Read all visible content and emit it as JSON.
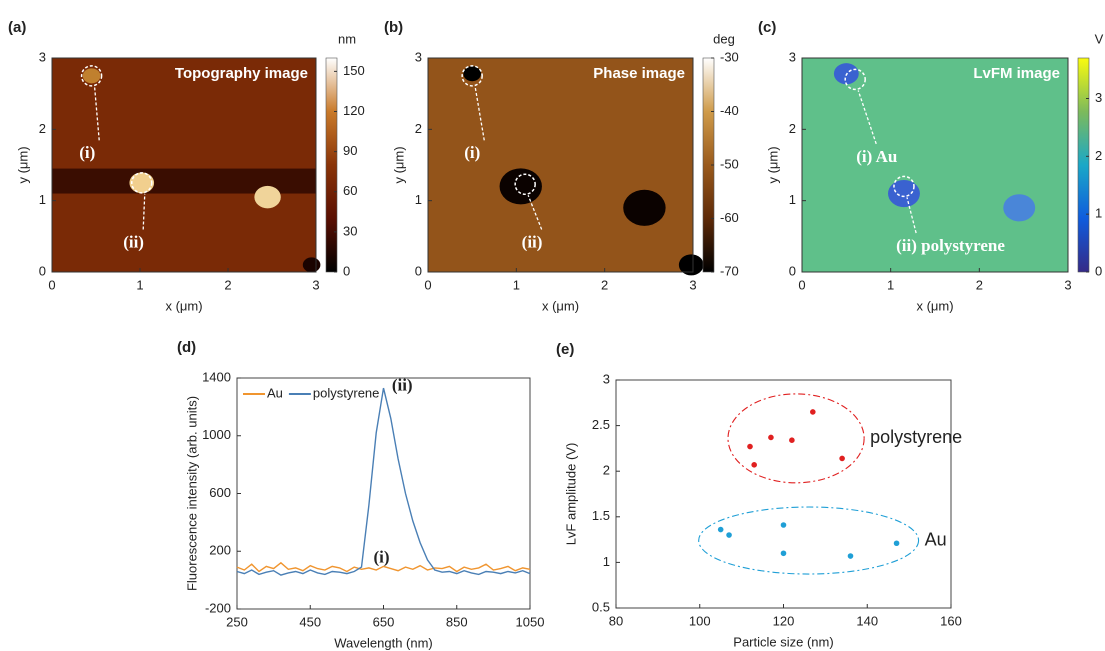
{
  "chart_data": [
    {
      "type": "heatmap",
      "panel_label": "(a)",
      "title": "Topography image",
      "x_label": "x (μm)",
      "y_label": "y (μm)",
      "xlim": [
        0,
        3
      ],
      "ylim": [
        0,
        3
      ],
      "xticks": [
        0,
        1,
        2,
        3
      ],
      "yticks": [
        0,
        1,
        2,
        3
      ],
      "clim": [
        0,
        160
      ],
      "cticks": [
        0,
        30,
        60,
        90,
        120,
        150
      ],
      "colorbar_label": "nm",
      "colormap": [
        "#000000",
        "#5a0f02",
        "#8a3408",
        "#c97a2a",
        "#ffffff"
      ],
      "annotations": [
        "(i)",
        "(ii)"
      ]
    },
    {
      "type": "heatmap",
      "panel_label": "(b)",
      "title": "Phase image",
      "x_label": "x (μm)",
      "y_label": "y (μm)",
      "xlim": [
        0,
        3
      ],
      "ylim": [
        0,
        3
      ],
      "xticks": [
        0,
        1,
        2,
        3
      ],
      "yticks": [
        0,
        1,
        2,
        3
      ],
      "clim": [
        -70,
        -30
      ],
      "cticks": [
        -70,
        -60,
        -50,
        -40,
        -30
      ],
      "colorbar_label": "deg",
      "colormap": [
        "#000000",
        "#5e2a08",
        "#9a5a1c",
        "#cf9b4a",
        "#ffffff"
      ],
      "annotations": [
        "(i)",
        "(ii)"
      ]
    },
    {
      "type": "heatmap",
      "panel_label": "(c)",
      "title": "LvFM image",
      "x_label": "x (μm)",
      "y_label": "y (μm)",
      "xlim": [
        0,
        3
      ],
      "ylim": [
        0,
        3
      ],
      "xticks": [
        0,
        1,
        2,
        3
      ],
      "yticks": [
        0,
        1,
        2,
        3
      ],
      "clim": [
        0,
        3.7
      ],
      "cticks": [
        0,
        1,
        2,
        3
      ],
      "colorbar_label": "V",
      "colormap": [
        "#352a87",
        "#0f5cdd",
        "#1aa8c7",
        "#7dba5b",
        "#f9fb0e"
      ],
      "annotations": [
        "(i) Au",
        "(ii) polystyrene"
      ]
    },
    {
      "type": "line",
      "panel_label": "(d)",
      "x_label": "Wavelength (nm)",
      "y_label": "Fluorescence intensity (arb. units)",
      "xlim": [
        250,
        1050
      ],
      "xticks": [
        250,
        450,
        650,
        850,
        1050
      ],
      "ylim": [
        -200,
        1400
      ],
      "yticks": [
        -200,
        200,
        600,
        1000,
        1400
      ],
      "legend": "upper left",
      "annotations": [
        "(i)",
        "(ii)"
      ],
      "x": [
        250,
        270,
        290,
        310,
        330,
        350,
        370,
        390,
        410,
        430,
        450,
        470,
        490,
        510,
        530,
        550,
        570,
        590,
        610,
        630,
        650,
        670,
        690,
        710,
        730,
        750,
        770,
        790,
        810,
        830,
        850,
        870,
        890,
        910,
        930,
        950,
        970,
        990,
        1010,
        1030,
        1050
      ],
      "series": [
        {
          "name": "Au",
          "color": "#f0952f",
          "values": [
            90,
            70,
            110,
            60,
            95,
            80,
            120,
            75,
            85,
            65,
            100,
            80,
            70,
            95,
            85,
            60,
            90,
            75,
            85,
            70,
            95,
            80,
            65,
            90,
            75,
            100,
            70,
            85,
            80,
            95,
            60,
            90,
            75,
            85,
            110,
            70,
            80,
            95,
            65,
            85,
            75
          ]
        },
        {
          "name": "polystyrene",
          "color": "#4a7fb5",
          "values": [
            60,
            45,
            70,
            40,
            55,
            65,
            35,
            50,
            60,
            45,
            70,
            50,
            40,
            60,
            55,
            45,
            60,
            90,
            520,
            1020,
            1330,
            1120,
            840,
            600,
            410,
            260,
            140,
            70,
            55,
            60,
            45,
            65,
            50,
            40,
            60,
            55,
            45,
            60,
            50,
            65,
            45
          ]
        }
      ]
    },
    {
      "type": "scatter",
      "panel_label": "(e)",
      "x_label": "Particle size (nm)",
      "y_label": "LvF amplitude (V)",
      "xlim": [
        80,
        160
      ],
      "xticks": [
        80,
        100,
        120,
        140,
        160
      ],
      "ylim": [
        0.5,
        3
      ],
      "yticks": [
        0.5,
        1,
        1.5,
        2,
        2.5,
        3
      ],
      "series": [
        {
          "name": "polystyrene",
          "color": "#e02020",
          "x": [
            112,
            113,
            117,
            122,
            127,
            134
          ],
          "y": [
            2.27,
            2.07,
            2.37,
            2.34,
            2.65,
            2.14
          ]
        },
        {
          "name": "Au",
          "color": "#1f9fd6",
          "x": [
            105,
            107,
            120,
            120,
            136,
            147
          ],
          "y": [
            1.36,
            1.3,
            1.41,
            1.1,
            1.07,
            1.21
          ]
        }
      ]
    }
  ]
}
